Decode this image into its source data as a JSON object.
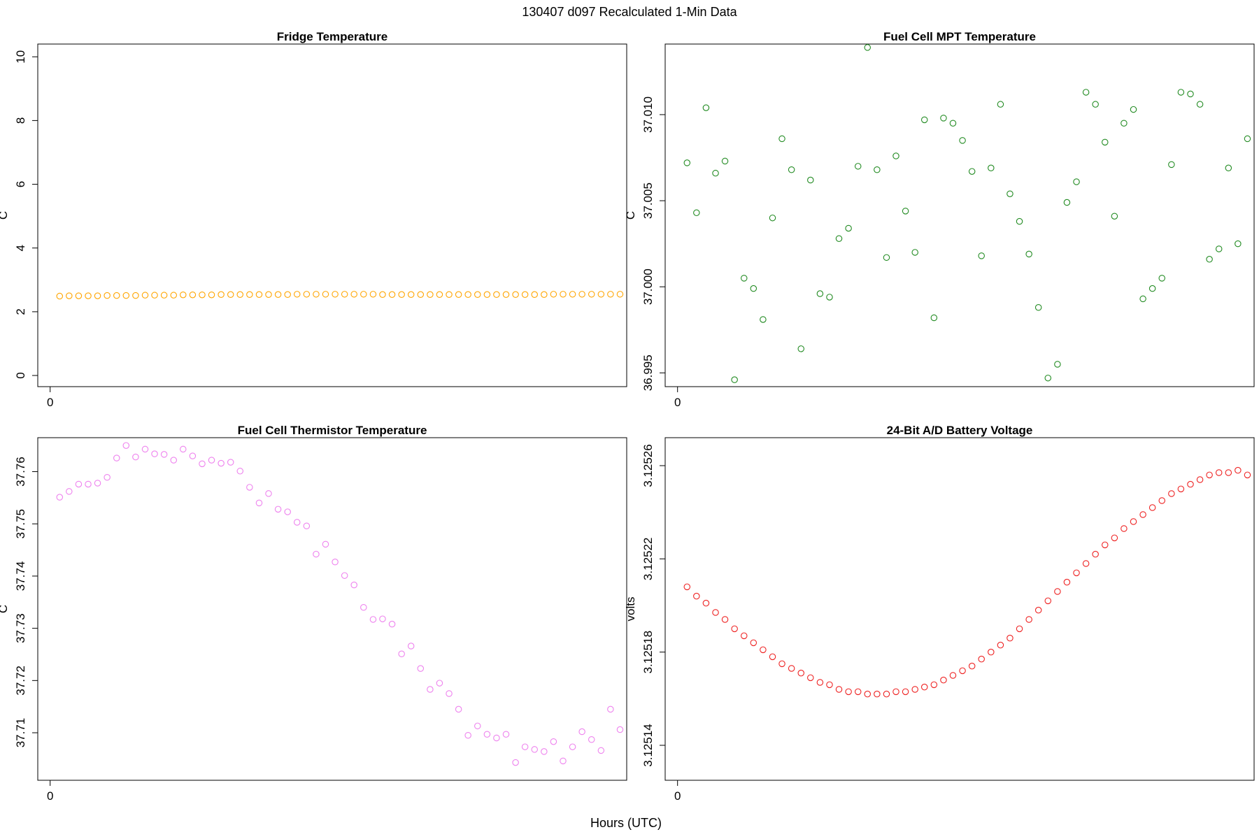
{
  "figure": {
    "title": "130407   d097   Recalculated 1-Min Data",
    "xlabel": "Hours (UTC)"
  },
  "chart_data": [
    {
      "type": "scatter",
      "title": "Fridge Temperature",
      "ylabel": "C",
      "xlabel": "",
      "color": "#FFA500",
      "ylim": [
        -0.35,
        10.4
      ],
      "yticks": [
        0,
        2,
        4,
        6,
        8,
        10
      ],
      "ytick_labels": [
        "0",
        "2",
        "4",
        "6",
        "8",
        "10"
      ],
      "xlim": [
        -0.0217,
        1.0117
      ],
      "xticks": [
        0
      ],
      "xtick_labels": [
        "0"
      ],
      "x": [
        0.0167,
        0.0333,
        0.05,
        0.0667,
        0.0833,
        0.1,
        0.1167,
        0.1333,
        0.15,
        0.1667,
        0.1833,
        0.2,
        0.2167,
        0.2333,
        0.25,
        0.2667,
        0.2833,
        0.3,
        0.3167,
        0.3333,
        0.35,
        0.3667,
        0.3833,
        0.4,
        0.4167,
        0.4333,
        0.45,
        0.4667,
        0.4833,
        0.5,
        0.5167,
        0.5333,
        0.55,
        0.5667,
        0.5833,
        0.6,
        0.6167,
        0.6333,
        0.65,
        0.6667,
        0.6833,
        0.7,
        0.7167,
        0.7333,
        0.75,
        0.7667,
        0.7833,
        0.8,
        0.8167,
        0.8333,
        0.85,
        0.8667,
        0.8833,
        0.9,
        0.9167,
        0.9333,
        0.95,
        0.9667,
        0.9833,
        1.0
      ],
      "y": [
        2.49,
        2.5,
        2.5,
        2.5,
        2.5,
        2.51,
        2.51,
        2.51,
        2.51,
        2.52,
        2.52,
        2.52,
        2.52,
        2.53,
        2.53,
        2.53,
        2.53,
        2.54,
        2.54,
        2.54,
        2.54,
        2.54,
        2.54,
        2.54,
        2.54,
        2.55,
        2.55,
        2.55,
        2.55,
        2.55,
        2.55,
        2.55,
        2.55,
        2.55,
        2.54,
        2.54,
        2.54,
        2.54,
        2.54,
        2.54,
        2.54,
        2.54,
        2.54,
        2.54,
        2.54,
        2.54,
        2.54,
        2.54,
        2.54,
        2.54,
        2.54,
        2.54,
        2.55,
        2.55,
        2.55,
        2.55,
        2.55,
        2.55,
        2.55,
        2.55
      ]
    },
    {
      "type": "scatter",
      "title": "Fuel Cell MPT Temperature",
      "ylabel": "C",
      "xlabel": "",
      "color": "#228B22",
      "ylim": [
        36.9942,
        37.0141
      ],
      "yticks": [
        36.995,
        37.0,
        37.005,
        37.01
      ],
      "ytick_labels": [
        "36.995",
        "37.000",
        "37.005",
        "37.010"
      ],
      "xlim": [
        -0.0217,
        1.0117
      ],
      "xticks": [
        0
      ],
      "xtick_labels": [
        "0"
      ],
      "x": [
        0.0167,
        0.0333,
        0.05,
        0.0667,
        0.0833,
        0.1,
        0.1167,
        0.1333,
        0.15,
        0.1667,
        0.1833,
        0.2,
        0.2167,
        0.2333,
        0.25,
        0.2667,
        0.2833,
        0.3,
        0.3167,
        0.3333,
        0.35,
        0.3667,
        0.3833,
        0.4,
        0.4167,
        0.4333,
        0.45,
        0.4667,
        0.4833,
        0.5,
        0.5167,
        0.5333,
        0.55,
        0.5667,
        0.5833,
        0.6,
        0.6167,
        0.6333,
        0.65,
        0.6667,
        0.6833,
        0.7,
        0.7167,
        0.7333,
        0.75,
        0.7667,
        0.7833,
        0.8,
        0.8167,
        0.8333,
        0.85,
        0.8667,
        0.8833,
        0.9,
        0.9167,
        0.9333,
        0.95,
        0.9667,
        0.9833,
        1.0
      ],
      "y": [
        37.0072,
        37.0043,
        37.0104,
        37.0066,
        37.0073,
        36.9946,
        37.0005,
        36.9999,
        36.9981,
        37.004,
        37.0086,
        37.0068,
        36.9964,
        37.0062,
        36.9996,
        36.9994,
        37.0028,
        37.0034,
        37.007,
        37.0139,
        37.0068,
        37.0017,
        37.0076,
        37.0044,
        37.002,
        37.0097,
        36.9982,
        37.0098,
        37.0095,
        37.0085,
        37.0067,
        37.0018,
        37.0069,
        37.0106,
        37.0054,
        37.0038,
        37.0019,
        36.9988,
        36.9947,
        36.9955,
        37.0049,
        37.0061,
        37.0113,
        37.0106,
        37.0084,
        37.0041,
        37.0095,
        37.0103,
        36.9993,
        36.9999,
        37.0005,
        37.0071,
        37.0113,
        37.0112,
        37.0106,
        37.0016,
        37.0022,
        37.0069,
        37.0025,
        37.0086
      ]
    },
    {
      "type": "scatter",
      "title": "Fuel Cell Thermistor Temperature",
      "ylabel": "C",
      "xlabel": "",
      "color": "#EE82EE",
      "ylim": [
        37.7009,
        37.7665
      ],
      "yticks": [
        37.71,
        37.72,
        37.73,
        37.74,
        37.75,
        37.76
      ],
      "ytick_labels": [
        "37.71",
        "37.72",
        "37.73",
        "37.74",
        "37.75",
        "37.76"
      ],
      "xlim": [
        -0.0217,
        1.0117
      ],
      "xticks": [
        0
      ],
      "xtick_labels": [
        "0"
      ],
      "x": [
        0.0167,
        0.0333,
        0.05,
        0.0667,
        0.0833,
        0.1,
        0.1167,
        0.1333,
        0.15,
        0.1667,
        0.1833,
        0.2,
        0.2167,
        0.2333,
        0.25,
        0.2667,
        0.2833,
        0.3,
        0.3167,
        0.3333,
        0.35,
        0.3667,
        0.3833,
        0.4,
        0.4167,
        0.4333,
        0.45,
        0.4667,
        0.4833,
        0.5,
        0.5167,
        0.5333,
        0.55,
        0.5667,
        0.5833,
        0.6,
        0.6167,
        0.6333,
        0.65,
        0.6667,
        0.6833,
        0.7,
        0.7167,
        0.7333,
        0.75,
        0.7667,
        0.7833,
        0.8,
        0.8167,
        0.8333,
        0.85,
        0.8667,
        0.8833,
        0.9,
        0.9167,
        0.9333,
        0.95,
        0.9667,
        0.9833,
        1.0
      ],
      "y": [
        37.7551,
        37.7562,
        37.7576,
        37.7576,
        37.7578,
        37.7589,
        37.7626,
        37.765,
        37.7628,
        37.7643,
        37.7634,
        37.7633,
        37.7622,
        37.7643,
        37.763,
        37.7615,
        37.7622,
        37.7616,
        37.7618,
        37.7601,
        37.757,
        37.754,
        37.7558,
        37.7528,
        37.7523,
        37.7503,
        37.7496,
        37.7442,
        37.7461,
        37.7427,
        37.7401,
        37.7383,
        37.734,
        37.7317,
        37.7318,
        37.7308,
        37.7251,
        37.7266,
        37.7223,
        37.7183,
        37.7195,
        37.7175,
        37.7145,
        37.7095,
        37.7113,
        37.7097,
        37.709,
        37.7097,
        37.7043,
        37.7073,
        37.7068,
        37.7064,
        37.7083,
        37.7046,
        37.7073,
        37.7102,
        37.7087,
        37.7066,
        37.7145,
        37.7106
      ]
    },
    {
      "type": "scatter",
      "title": "24-Bit A/D Battery Voltage",
      "ylabel": "volts",
      "xlabel": "",
      "color": "#EE2222",
      "ylim": [
        3.125125,
        3.125272
      ],
      "yticks": [
        3.12514,
        3.12518,
        3.12522,
        3.12526
      ],
      "ytick_labels": [
        "3.12514",
        "3.12518",
        "3.12522",
        "3.12526"
      ],
      "xlim": [
        -0.0217,
        1.0117
      ],
      "xticks": [
        0
      ],
      "xtick_labels": [
        "0"
      ],
      "x": [
        0.0167,
        0.0333,
        0.05,
        0.0667,
        0.0833,
        0.1,
        0.1167,
        0.1333,
        0.15,
        0.1667,
        0.1833,
        0.2,
        0.2167,
        0.2333,
        0.25,
        0.2667,
        0.2833,
        0.3,
        0.3167,
        0.3333,
        0.35,
        0.3667,
        0.3833,
        0.4,
        0.4167,
        0.4333,
        0.45,
        0.4667,
        0.4833,
        0.5,
        0.5167,
        0.5333,
        0.55,
        0.5667,
        0.5833,
        0.6,
        0.6167,
        0.6333,
        0.65,
        0.6667,
        0.6833,
        0.7,
        0.7167,
        0.7333,
        0.75,
        0.7667,
        0.7833,
        0.8,
        0.8167,
        0.8333,
        0.85,
        0.8667,
        0.8833,
        0.9,
        0.9167,
        0.9333,
        0.95,
        0.9667,
        0.9833,
        1.0
      ],
      "y": [
        3.125208,
        3.125204,
        3.125201,
        3.125197,
        3.125194,
        3.12519,
        3.125187,
        3.125184,
        3.125181,
        3.125178,
        3.125175,
        3.125173,
        3.125171,
        3.125169,
        3.125167,
        3.125166,
        3.125164,
        3.125163,
        3.125163,
        3.125162,
        3.125162,
        3.125162,
        3.125163,
        3.125163,
        3.125164,
        3.125165,
        3.125166,
        3.125168,
        3.12517,
        3.125172,
        3.125174,
        3.125177,
        3.12518,
        3.125183,
        3.125186,
        3.12519,
        3.125194,
        3.125198,
        3.125202,
        3.125206,
        3.12521,
        3.125214,
        3.125218,
        3.125222,
        3.125226,
        3.125229,
        3.125233,
        3.125236,
        3.125239,
        3.125242,
        3.125245,
        3.125248,
        3.12525,
        3.125252,
        3.125254,
        3.125256,
        3.125257,
        3.125257,
        3.125258,
        3.125256
      ]
    }
  ]
}
